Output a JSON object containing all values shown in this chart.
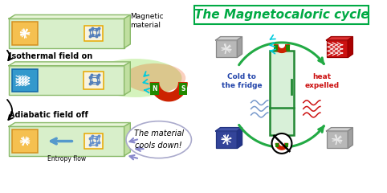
{
  "title": "The Magnetocaloric cycle",
  "title_color": "#00aa44",
  "title_fontsize": 11,
  "bg_color": "#ffffff",
  "label_isothermal": "Isothermal field on",
  "label_adiabatic": "Adiabatic field off",
  "label_magnetic": "Magnetic\nmaterial",
  "entropy_label": "Entropy flow",
  "callout_text": "The material\ncools down!",
  "cold_label": "Cold to\nthe fridge",
  "heat_label": "heat\nexpelled",
  "box_green_light": "#d8efca",
  "box_green_border": "#8aba6a",
  "box_green_top": "#e8f5d8",
  "box_green_side": "#c0dfa0",
  "box_blue_light": "#cce4f5",
  "box_blue_border": "#7ab0d8",
  "magnet_red": "#cc2200",
  "magnet_green": "#228800",
  "hot_red": "#cc1111",
  "cold_blue_label": "#2244aa",
  "arrow_green": "#22aa44",
  "spin_orange_bg": "#f5c050",
  "spin_orange_border": "#d49020",
  "spin_blue_bg": "#3399cc",
  "spin_blue_border": "#1166aa",
  "cube_line_color": "#5580bb",
  "cube_line_color2": "#6690cc",
  "cube_border_orange": "#e8a800",
  "cube_bg": "#f8f4e0",
  "grey_cube_bg": "#aaaaaa",
  "grey_cube_border": "#888888",
  "hot_cube_bg": "#cc1111",
  "cold_cube_bg": "#334499",
  "fridge_color": "#d8f0d8",
  "fridge_border": "#228833"
}
